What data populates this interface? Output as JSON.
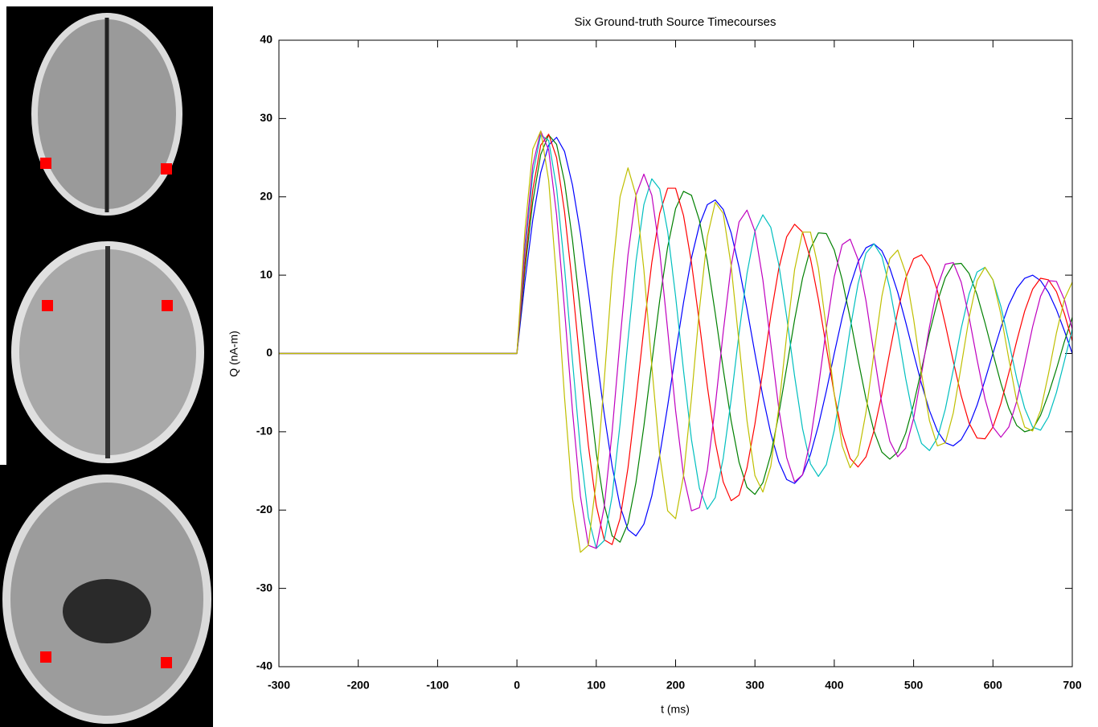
{
  "chart_data": {
    "type": "line",
    "title": "Six Ground-truth Source Timecourses",
    "xlabel": "t (ms)",
    "ylabel": "Q (nA-m)",
    "xlim": [
      -300,
      700
    ],
    "ylim": [
      -40,
      40
    ],
    "xticks": [
      -300,
      -200,
      -100,
      0,
      100,
      200,
      300,
      400,
      500,
      600,
      700
    ],
    "yticks": [
      -40,
      -30,
      -20,
      -10,
      0,
      10,
      20,
      30,
      40
    ],
    "grid": false,
    "x": [
      -300,
      0,
      10,
      20,
      30,
      40,
      50,
      60,
      70,
      80,
      90,
      100,
      110,
      120,
      130,
      140,
      150,
      160,
      170,
      180,
      190,
      200,
      210,
      220,
      230,
      240,
      250,
      260,
      270,
      280,
      290,
      300,
      310,
      320,
      330,
      340,
      350,
      360,
      370,
      380,
      390,
      400,
      410,
      420,
      430,
      440,
      450,
      460,
      470,
      480,
      490,
      500,
      510,
      520,
      530,
      540,
      550,
      560,
      570,
      580,
      590,
      600,
      610,
      620,
      630,
      640,
      650,
      660,
      670,
      680,
      690,
      700
    ],
    "series": [
      {
        "color": "#0000ff",
        "values": [
          0,
          0,
          9.1,
          17.1,
          23.1,
          26.6,
          27.6,
          25.8,
          21.5,
          15.4,
          8.0,
          0,
          -7.7,
          -14.4,
          -19.5,
          -22.5,
          -23.3,
          -21.8,
          -18.2,
          -13.0,
          -6.7,
          0,
          6.5,
          12.2,
          16.4,
          19.0,
          19.6,
          18.4,
          15.4,
          11.0,
          5.7,
          0,
          -5.5,
          -10.2,
          -13.8,
          -16.1,
          -16.6,
          -15.5,
          -12.9,
          -9.2,
          -4.8,
          0,
          4.6,
          8.6,
          11.7,
          13.5,
          14.0,
          13.1,
          10.9,
          7.8,
          4.0,
          0,
          -3.9,
          -7.3,
          -9.9,
          -11.4,
          -11.8,
          -11.0,
          -9.2,
          -6.6,
          -3.4,
          0,
          3.3,
          6.2,
          8.3,
          9.6,
          10.0,
          9.3,
          7.8,
          5.6,
          2.9,
          0
        ]
      },
      {
        "color": "#008000",
        "values": [
          0,
          0,
          10.6,
          19.4,
          25.4,
          27.9,
          26.7,
          21.9,
          14.5,
          5.4,
          -4.0,
          -12.7,
          -19.3,
          -23.3,
          -24.1,
          -21.7,
          -16.5,
          -9.3,
          -1.2,
          6.8,
          13.6,
          18.5,
          20.7,
          20.2,
          17.0,
          11.8,
          5.1,
          -2.0,
          -8.6,
          -13.9,
          -17.1,
          -18.0,
          -16.5,
          -12.9,
          -7.8,
          -1.8,
          4.3,
          9.6,
          13.4,
          15.4,
          15.3,
          13.2,
          9.4,
          4.5,
          -0.8,
          -5.8,
          -9.9,
          -12.6,
          -13.5,
          -12.6,
          -10.2,
          -6.5,
          -2.0,
          2.6,
          6.6,
          9.7,
          11.4,
          11.5,
          10.2,
          7.5,
          3.9,
          0,
          -3.8,
          -7.0,
          -9.2,
          -10.0,
          -9.7,
          -7.9,
          -5.2,
          -2.0,
          1.5,
          4.6
        ]
      },
      {
        "color": "#ff0000",
        "values": [
          0,
          0,
          11.5,
          20.9,
          26.6,
          28.0,
          25.0,
          18.1,
          8.7,
          -1.8,
          -11.7,
          -19.4,
          -23.8,
          -24.4,
          -21.1,
          -14.6,
          -6.0,
          3.2,
          11.6,
          17.9,
          21.1,
          21.1,
          17.6,
          11.6,
          3.9,
          -4.2,
          -11.3,
          -16.4,
          -18.8,
          -18.1,
          -14.6,
          -9.0,
          -2.2,
          4.8,
          10.8,
          14.9,
          16.5,
          15.5,
          12.1,
          6.9,
          0.8,
          -5.2,
          -10.2,
          -13.4,
          -14.5,
          -13.2,
          -9.9,
          -5.2,
          0.2,
          5.4,
          9.6,
          12.1,
          12.6,
          11.1,
          8.0,
          3.7,
          -1.0,
          -5.4,
          -8.9,
          -10.8,
          -10.9,
          -9.4,
          -6.4,
          -2.5,
          1.6,
          5.4,
          8.2,
          9.6,
          9.4,
          7.9,
          5.1,
          1.6
        ]
      },
      {
        "color": "#00bfbf",
        "values": [
          0,
          0,
          12.9,
          22.9,
          27.9,
          27.2,
          21.1,
          11.0,
          -0.9,
          -12.3,
          -20.9,
          -24.9,
          -23.9,
          -18.2,
          -9.0,
          1.7,
          11.7,
          19.0,
          22.3,
          21.0,
          15.6,
          7.3,
          -2.2,
          -11.0,
          -17.2,
          -19.9,
          -18.4,
          -13.4,
          -5.9,
          2.6,
          10.2,
          15.6,
          17.7,
          16.1,
          11.4,
          4.7,
          -2.9,
          -9.6,
          -14.1,
          -15.7,
          -14.2,
          -9.8,
          -3.6,
          3.1,
          8.9,
          12.8,
          14.0,
          12.4,
          8.3,
          2.8,
          -3.2,
          -8.3,
          -11.5,
          -12.4,
          -10.8,
          -7.1,
          -2.1,
          3.2,
          7.6,
          10.4,
          11.0,
          9.4,
          6.0,
          1.5,
          -3.2,
          -7.0,
          -9.4,
          -9.8,
          -8.1,
          -5.0,
          -1.0,
          3.1
        ]
      },
      {
        "color": "#bf00bf",
        "values": [
          0,
          0,
          13.8,
          24.0,
          28.4,
          26.0,
          17.7,
          5.6,
          -7.3,
          -18.2,
          -24.5,
          -24.9,
          -19.6,
          -10.0,
          1.7,
          12.6,
          20.2,
          22.9,
          20.2,
          13.0,
          3.0,
          -7.3,
          -15.6,
          -20.1,
          -19.7,
          -14.9,
          -6.7,
          2.7,
          11.2,
          16.8,
          18.3,
          15.6,
          9.4,
          1.2,
          -7.0,
          -13.3,
          -16.4,
          -15.5,
          -11.1,
          -4.3,
          3.2,
          9.8,
          13.9,
          14.6,
          12.0,
          6.7,
          0,
          -6.5,
          -11.2,
          -13.2,
          -12.1,
          -8.3,
          -2.6,
          3.4,
          8.5,
          11.4,
          11.6,
          9.1,
          4.6,
          -0.8,
          -5.8,
          -9.4,
          -10.7,
          -9.4,
          -6.1,
          -1.4,
          3.4,
          7.3,
          9.3,
          9.2,
          6.9,
          3.1
        ]
      },
      {
        "color": "#bfbf00",
        "values": [
          0,
          0,
          15.6,
          26.1,
          28.4,
          22.1,
          9.4,
          -5.6,
          -18.5,
          -25.4,
          -24.5,
          -16.3,
          -3.5,
          10.0,
          20.0,
          23.7,
          20.2,
          10.7,
          -1.6,
          -13.0,
          -20.1,
          -21.1,
          -15.6,
          -5.7,
          5.6,
          14.9,
          19.3,
          17.9,
          11.2,
          1.3,
          -8.6,
          -15.6,
          -17.7,
          -14.4,
          -7.0,
          2.3,
          10.7,
          15.5,
          15.5,
          10.9,
          3.2,
          -5.2,
          -11.8,
          -14.6,
          -13.0,
          -7.5,
          0,
          7.3,
          12.1,
          13.2,
          10.3,
          4.4,
          -2.6,
          -8.6,
          -11.8,
          -11.4,
          -7.6,
          -1.6,
          4.6,
          9.3,
          11.0,
          9.4,
          5.0,
          -0.7,
          -6.1,
          -9.4,
          -9.9,
          -7.3,
          -2.6,
          2.6,
          6.9,
          9.1
        ]
      }
    ]
  }
}
